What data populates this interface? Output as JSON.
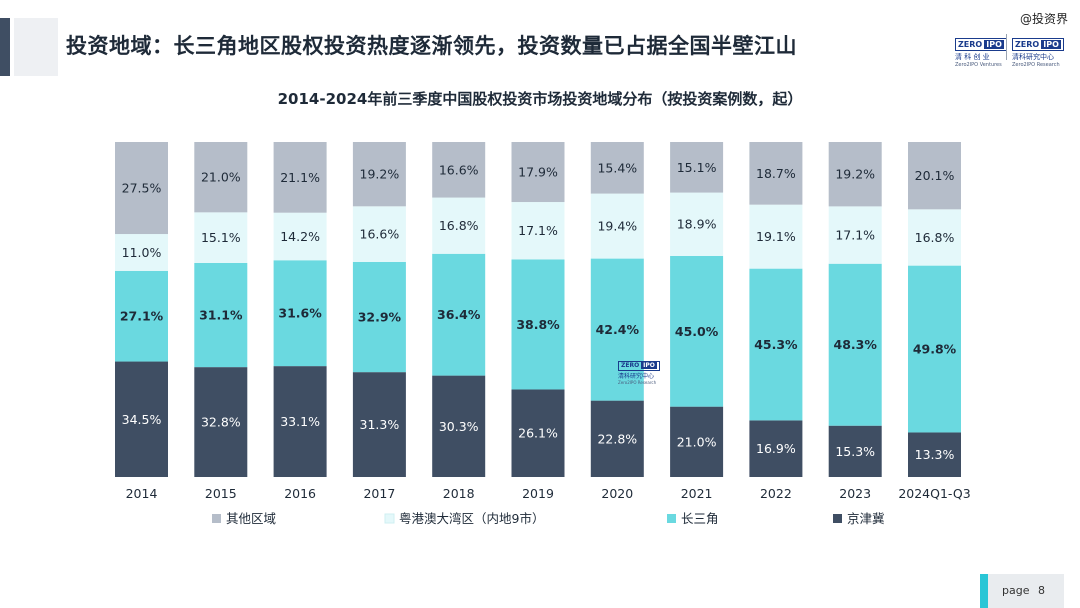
{
  "header": {
    "title": "投资地域：长三角地区股权投资热度逐渐领先，投资数量已占据全国半壁江山",
    "watermark": "@投资界"
  },
  "logos": {
    "left": {
      "mark": "ZERO",
      "mark2": "IPO",
      "cn": "清 科 创 业",
      "en": "Zero2IPO Ventures"
    },
    "right": {
      "mark": "ZERO",
      "mark2": "IPO",
      "cn": "清科研究中心",
      "en": "Zero2IPO Research"
    },
    "center_watermark": {
      "mark": "ZERO",
      "mark2": "IPO",
      "cn": "清科研究中心",
      "en": "Zero2IPO Research"
    }
  },
  "chart_data": {
    "type": "bar",
    "stacked": true,
    "percent": true,
    "title": "2014-2024年前三季度中国股权投资市场投资地域分布（按投资案例数，起）",
    "categories": [
      "2014",
      "2015",
      "2016",
      "2017",
      "2018",
      "2019",
      "2020",
      "2021",
      "2022",
      "2023",
      "2024Q1-Q3"
    ],
    "series": [
      {
        "name": "京津冀",
        "color": "#3f4e63",
        "label_color": "#ffffff",
        "bold": false,
        "values": [
          34.5,
          32.8,
          33.1,
          31.3,
          30.3,
          26.1,
          22.8,
          21.0,
          16.9,
          15.3,
          13.3
        ],
        "labels": [
          "34.5%",
          "32.8%",
          "33.1%",
          "31.3%",
          "30.3%",
          "26.1%",
          "22.8%",
          "21.0%",
          "16.9%",
          "15.3%",
          "13.3%"
        ]
      },
      {
        "name": "长三角",
        "color": "#6ad9e0",
        "label_color": "#1e2a38",
        "bold": true,
        "values": [
          27.1,
          31.1,
          31.6,
          32.9,
          36.4,
          38.8,
          42.4,
          45.0,
          45.3,
          48.3,
          49.8
        ],
        "labels": [
          "27.1%",
          "31.1%",
          "31.6%",
          "32.9%",
          "36.4%",
          "38.8%",
          "42.4%",
          "45.0%",
          "45.3%",
          "48.3%",
          "49.8%"
        ]
      },
      {
        "name": "粤港澳大湾区（内地9市）",
        "color": "#e4f8fa",
        "label_color": "#1e2a38",
        "bold": false,
        "values": [
          11.0,
          15.1,
          14.2,
          16.6,
          16.8,
          17.1,
          19.4,
          18.9,
          19.1,
          17.1,
          16.8
        ],
        "labels": [
          "11.0%",
          "15.1%",
          "14.2%",
          "16.6%",
          "16.8%",
          "17.1%",
          "19.4%",
          "18.9%",
          "19.1%",
          "17.1%",
          "16.8%"
        ]
      },
      {
        "name": "其他区域",
        "color": "#b5bdc9",
        "label_color": "#1e2a38",
        "bold": false,
        "values": [
          27.5,
          21.0,
          21.1,
          19.2,
          16.6,
          17.9,
          15.4,
          15.1,
          18.7,
          19.2,
          20.1
        ],
        "labels": [
          "27.5%",
          "21.0%",
          "21.1%",
          "19.2%",
          "16.6%",
          "17.9%",
          "15.4%",
          "15.1%",
          "18.7%",
          "19.2%",
          "20.1%"
        ]
      }
    ],
    "legend_order": [
      "其他区域",
      "粤港澳大湾区（内地9市）",
      "长三角",
      "京津冀"
    ],
    "legend_position": "bottom",
    "ylim": [
      0,
      100
    ],
    "grid": false
  },
  "footer": {
    "page_label": "page",
    "page_number": "8"
  }
}
